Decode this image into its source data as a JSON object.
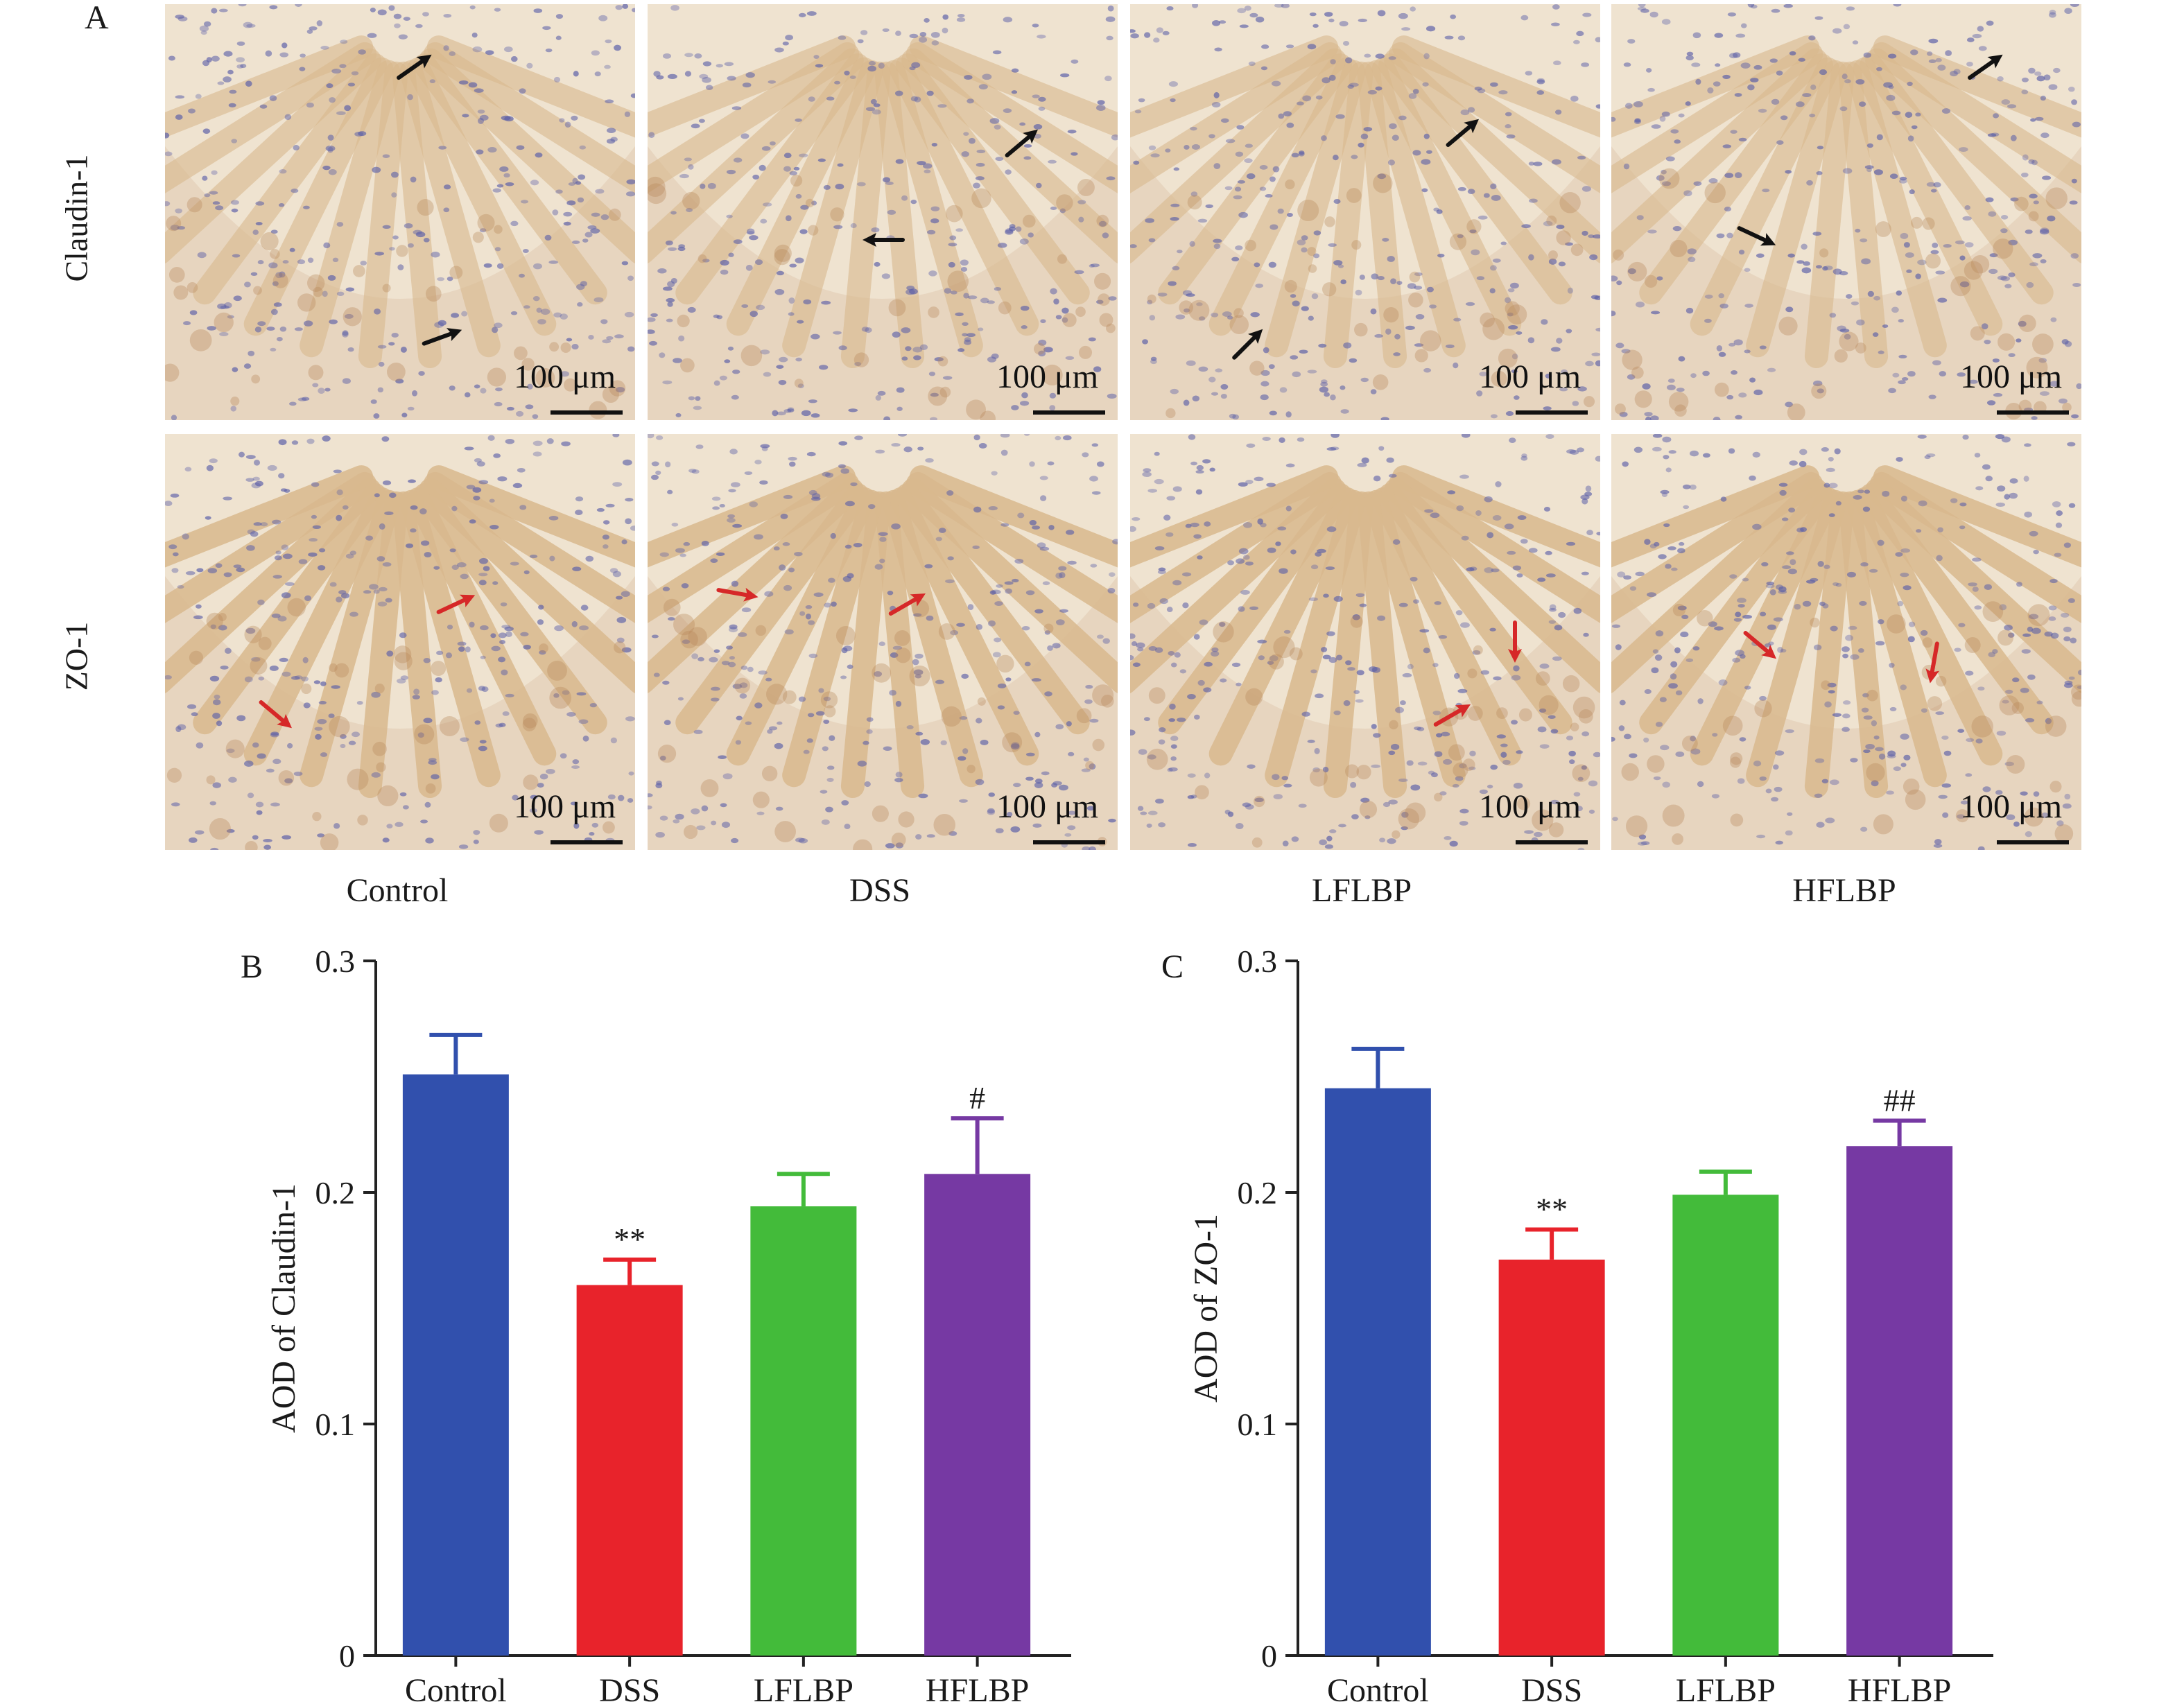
{
  "figure": {
    "panel_a_label": "A",
    "panel_b_label": "B",
    "panel_c_label": "C",
    "row_labels": [
      "Claudin-1",
      "ZO-1"
    ],
    "column_labels": [
      "Control",
      "DSS",
      "LFLBP",
      "HFLBP"
    ],
    "scale_bar_label": "100 μm",
    "arrow_colors": {
      "claudin": "#111111",
      "zo1": "#d62828"
    },
    "tissue_colors": {
      "background": "#efe3d0",
      "nuclei": "#5b5fa8",
      "stain": "#b8875a",
      "crypt": "#d9b98e"
    }
  },
  "chart_data": [
    {
      "type": "bar",
      "panel": "B",
      "categories": [
        "Control",
        "DSS",
        "LFLBP",
        "HFLBP"
      ],
      "values": [
        0.251,
        0.16,
        0.194,
        0.208
      ],
      "errors": [
        0.017,
        0.011,
        0.014,
        0.024
      ],
      "annotations": [
        "",
        "**",
        "",
        "#"
      ],
      "colors": [
        "#3150ad",
        "#e8232b",
        "#43bb3a",
        "#7639a3"
      ],
      "ylabel": "AOD of Claudin-1",
      "yticks": [
        "0",
        "0.1",
        "0.2",
        "0.3"
      ],
      "ylim": [
        0,
        0.3
      ],
      "grid": false
    },
    {
      "type": "bar",
      "panel": "C",
      "categories": [
        "Control",
        "DSS",
        "LFLBP",
        "HFLBP"
      ],
      "values": [
        0.245,
        0.171,
        0.199,
        0.22
      ],
      "errors": [
        0.017,
        0.013,
        0.01,
        0.011
      ],
      "annotations": [
        "",
        "**",
        "",
        "##"
      ],
      "colors": [
        "#3150ad",
        "#e8232b",
        "#43bb3a",
        "#7639a3"
      ],
      "ylabel": "AOD of ZO-1",
      "yticks": [
        "0",
        "0.1",
        "0.2",
        "0.3"
      ],
      "ylim": [
        0,
        0.3
      ],
      "grid": false
    }
  ]
}
